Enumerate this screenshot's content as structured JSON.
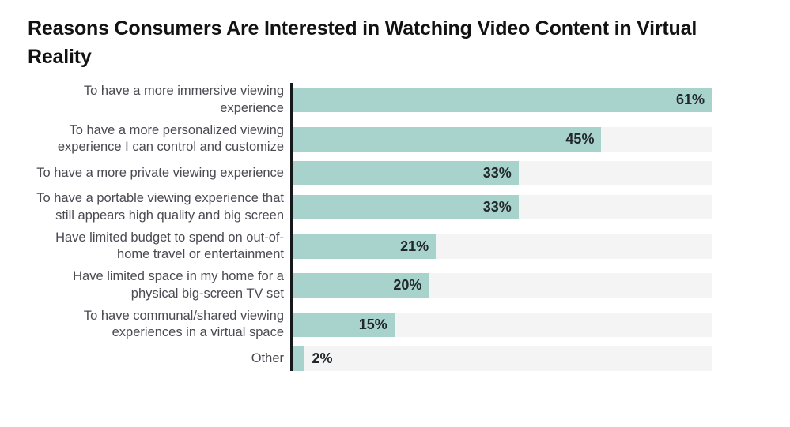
{
  "title": "Reasons Consumers Are Interested in Watching Video Content in Virtual Reality",
  "chart_data": {
    "type": "bar",
    "orientation": "horizontal",
    "title": "Reasons Consumers Are Interested in Watching Video Content in Virtual Reality",
    "categories": [
      "To have a more immersive viewing experience",
      "To have a more personalized viewing experience I can control and customize",
      "To have a more private viewing experience",
      "To have a portable viewing experience that still appears high quality and big screen",
      "Have limited budget to spend on out-of-home travel or entertainment",
      "Have limited space in my home for a physical big-screen TV set",
      "To have communal/shared viewing experiences in a virtual space",
      "Other"
    ],
    "values": [
      61,
      45,
      33,
      33,
      21,
      20,
      15,
      2
    ],
    "value_suffix": "%",
    "xlabel": "",
    "ylabel": "",
    "xlim": [
      0,
      61
    ],
    "grid": false,
    "legend": false,
    "value_labels": [
      "61%",
      "45%",
      "33%",
      "33%",
      "21%",
      "20%",
      "15%",
      "2%"
    ],
    "colors": {
      "bar": "#a8d3cc",
      "track": "#f4f4f4",
      "axis": "#16191c",
      "label": "#4a4a52",
      "value": "#21272a",
      "title": "#121212"
    }
  }
}
